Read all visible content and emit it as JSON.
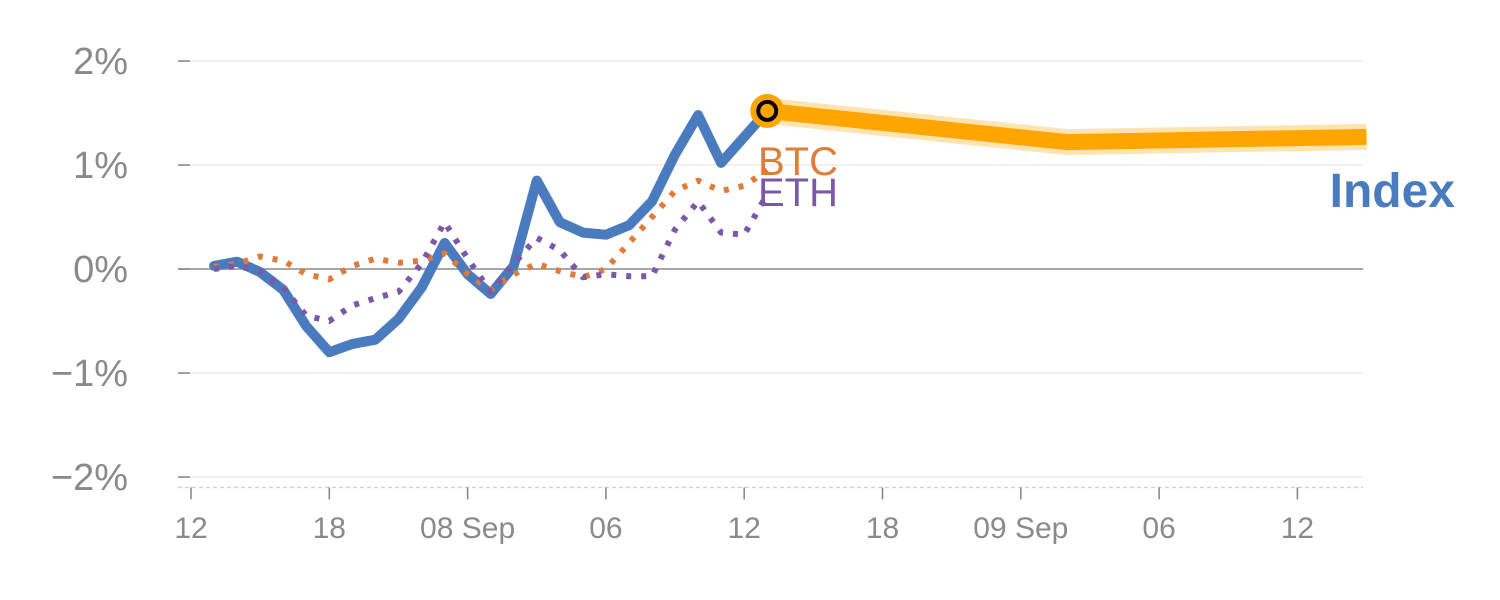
{
  "chart_data": {
    "type": "line",
    "x_tick_labels": [
      "12",
      "18",
      "08 Sep",
      "06",
      "12",
      "18",
      "09 Sep",
      "06",
      "12"
    ],
    "y_tick_labels": [
      "2%",
      "1%",
      "0%",
      "−1%",
      "−2%"
    ],
    "y_ticks": [
      2,
      1,
      0,
      -1,
      -2
    ],
    "ylim": [
      -2.1,
      2.1
    ],
    "x_range": [
      0,
      52
    ],
    "x_ticks": [
      0,
      6,
      12,
      18,
      24,
      30,
      36,
      42,
      48
    ],
    "grid": true,
    "series": [
      {
        "name": "Index",
        "color": "#4a7bbf",
        "style": "solid",
        "x": [
          1,
          2,
          3,
          4,
          5,
          6,
          7,
          8,
          9,
          10,
          11,
          12,
          13,
          14,
          15,
          16,
          17,
          18,
          19,
          20,
          21,
          22,
          23,
          24,
          25
        ],
        "y": [
          0.03,
          0.07,
          -0.03,
          -0.2,
          -0.55,
          -0.8,
          -0.72,
          -0.68,
          -0.48,
          -0.18,
          0.25,
          -0.05,
          -0.24,
          0.03,
          0.85,
          0.45,
          0.35,
          0.33,
          0.42,
          0.65,
          1.1,
          1.48,
          1.02,
          1.27,
          1.52
        ]
      },
      {
        "name": "BTC",
        "color": "#e07b39",
        "style": "dotted",
        "x": [
          1,
          2,
          3,
          4,
          5,
          6,
          7,
          8,
          9,
          10,
          11,
          12,
          13,
          14,
          15,
          16,
          17,
          18,
          19,
          20,
          21,
          22,
          23,
          24,
          25
        ],
        "y": [
          0.02,
          0.05,
          0.12,
          0.08,
          -0.05,
          -0.1,
          0.03,
          0.1,
          0.06,
          0.08,
          0.15,
          -0.05,
          -0.2,
          -0.05,
          0.05,
          -0.02,
          -0.08,
          0.0,
          0.25,
          0.5,
          0.75,
          0.85,
          0.75,
          0.8,
          0.95
        ]
      },
      {
        "name": "ETH",
        "color": "#7b59a8",
        "style": "dotted",
        "x": [
          1,
          2,
          3,
          4,
          5,
          6,
          7,
          8,
          9,
          10,
          11,
          12,
          13,
          14,
          15,
          16,
          17,
          18,
          19,
          20,
          21,
          22,
          23,
          24,
          25
        ],
        "y": [
          0.0,
          0.03,
          -0.02,
          -0.18,
          -0.45,
          -0.5,
          -0.35,
          -0.28,
          -0.22,
          0.05,
          0.45,
          0.1,
          -0.22,
          0.05,
          0.3,
          0.18,
          -0.08,
          -0.05,
          -0.07,
          -0.07,
          0.38,
          0.65,
          0.35,
          0.33,
          0.72
        ]
      }
    ],
    "forecast": {
      "color": "#ffa500",
      "x": [
        25,
        38,
        51
      ],
      "y": [
        1.52,
        1.22,
        1.27
      ]
    },
    "marker": {
      "x": 25,
      "y": 1.52,
      "fill": "#ffa500"
    }
  }
}
